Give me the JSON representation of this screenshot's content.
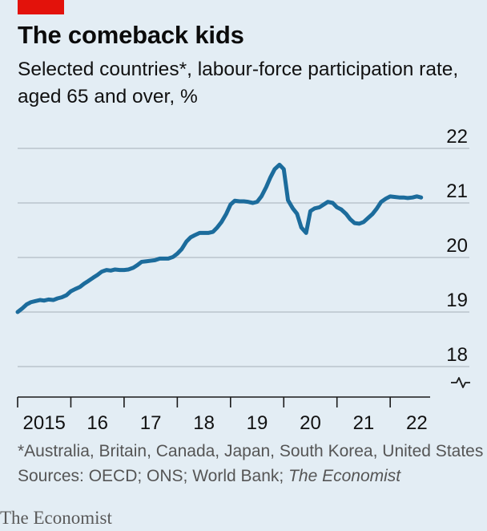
{
  "header": {
    "title": "The comeback kids",
    "subtitle": "Selected countries*, labour-force participation rate, aged 65 and over, %"
  },
  "footer": {
    "footnote": "*Australia, Britain, Canada, Japan, South Korea, United States",
    "sources_prefix": "Sources: OECD; ONS; World Bank; ",
    "sources_italic": "The Economist",
    "brand": "The Economist"
  },
  "colors": {
    "line": "#1c6c9c",
    "background": "#e3edf4",
    "grid": "#b9c4cc",
    "accent": "#e3120b"
  },
  "chart_data": {
    "type": "line",
    "title": "The comeback kids",
    "subtitle": "Selected countries*, labour-force participation rate, aged 65 and over, %",
    "xlabel": "",
    "ylabel": "",
    "ylim": [
      18,
      22
    ],
    "xlim": [
      2015.0,
      2022.75
    ],
    "y_axis_broken": true,
    "y_ticks": [
      22,
      21,
      20,
      19,
      18
    ],
    "y_tick_position": "right",
    "x_ticks": [
      {
        "x": 2015.5,
        "label": "2015"
      },
      {
        "x": 2016.5,
        "label": "16"
      },
      {
        "x": 2017.5,
        "label": "17"
      },
      {
        "x": 2018.5,
        "label": "18"
      },
      {
        "x": 2019.5,
        "label": "19"
      },
      {
        "x": 2020.5,
        "label": "20"
      },
      {
        "x": 2021.5,
        "label": "21"
      },
      {
        "x": 2022.5,
        "label": "22"
      }
    ],
    "x_year_boundaries": [
      2015,
      2016,
      2017,
      2018,
      2019,
      2020,
      2021,
      2022
    ],
    "grid": true,
    "series": [
      {
        "x": [
          2015.0,
          2015.08,
          2015.17,
          2015.25,
          2015.33,
          2015.42,
          2015.5,
          2015.58,
          2015.67,
          2015.75,
          2015.83,
          2015.92,
          2016.0,
          2016.08,
          2016.17,
          2016.25,
          2016.33,
          2016.42,
          2016.5,
          2016.58,
          2016.67,
          2016.75,
          2016.83,
          2016.92,
          2017.0,
          2017.08,
          2017.17,
          2017.25,
          2017.33,
          2017.42,
          2017.5,
          2017.58,
          2017.67,
          2017.75,
          2017.83,
          2017.92,
          2018.0,
          2018.08,
          2018.17,
          2018.25,
          2018.33,
          2018.42,
          2018.5,
          2018.58,
          2018.67,
          2018.75,
          2018.83,
          2018.92,
          2019.0,
          2019.08,
          2019.17,
          2019.25,
          2019.33,
          2019.42,
          2019.5,
          2019.58,
          2019.67,
          2019.75,
          2019.83,
          2019.92,
          2020.0,
          2020.08,
          2020.17,
          2020.25,
          2020.33,
          2020.42,
          2020.5,
          2020.58,
          2020.67,
          2020.75,
          2020.83,
          2020.92,
          2021.0,
          2021.08,
          2021.17,
          2021.25,
          2021.33,
          2021.42,
          2021.5,
          2021.58,
          2021.67,
          2021.75,
          2021.83,
          2021.92,
          2022.0,
          2022.08,
          2022.17,
          2022.25,
          2022.33,
          2022.42,
          2022.5,
          2022.58
        ],
        "y": [
          19.0,
          19.06,
          19.14,
          19.18,
          19.2,
          19.22,
          19.21,
          19.23,
          19.22,
          19.25,
          19.27,
          19.31,
          19.38,
          19.42,
          19.46,
          19.52,
          19.57,
          19.63,
          19.68,
          19.74,
          19.77,
          19.76,
          19.78,
          19.77,
          19.77,
          19.78,
          19.81,
          19.86,
          19.92,
          19.93,
          19.94,
          19.95,
          19.98,
          19.98,
          19.98,
          20.01,
          20.07,
          20.15,
          20.29,
          20.37,
          20.41,
          20.45,
          20.45,
          20.45,
          20.47,
          20.55,
          20.65,
          20.8,
          20.97,
          21.04,
          21.03,
          21.03,
          21.02,
          21.0,
          21.02,
          21.12,
          21.29,
          21.47,
          21.62,
          21.7,
          21.62,
          21.05,
          20.9,
          20.8,
          20.55,
          20.45,
          20.85,
          20.9,
          20.92,
          20.97,
          21.02,
          21.0,
          20.92,
          20.88,
          20.8,
          20.7,
          20.63,
          20.62,
          20.65,
          20.72,
          20.8,
          20.9,
          21.02,
          21.08,
          21.12,
          21.11,
          21.1,
          21.1,
          21.09,
          21.1,
          21.12,
          21.1
        ]
      }
    ]
  }
}
